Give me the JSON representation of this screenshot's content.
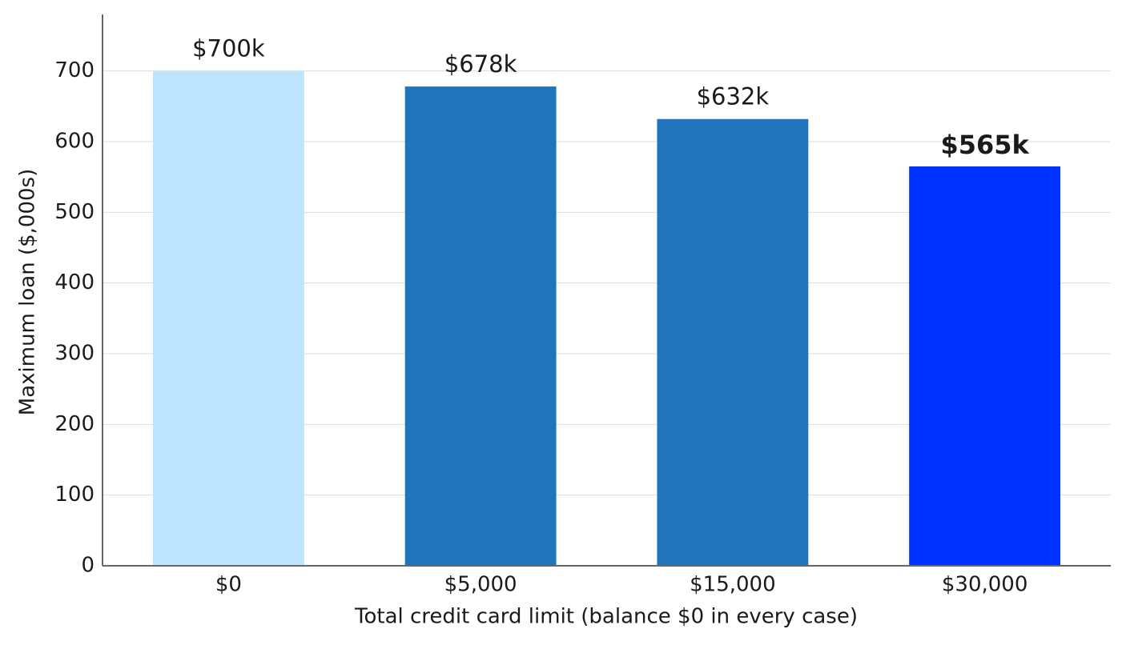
{
  "chart_data": {
    "type": "bar",
    "categories": [
      "$0",
      "$5,000",
      "$15,000",
      "$30,000"
    ],
    "values": [
      700,
      678,
      632,
      565
    ],
    "value_labels": [
      "$700k",
      "$678k",
      "$632k",
      "$565k"
    ],
    "colors": [
      "#bee3fc",
      "#1f74bc",
      "#1f74bc",
      "#0033ff"
    ],
    "highlight_index": 3,
    "xlabel": "Total credit card limit (balance $0 in every case)",
    "ylabel": "Maximum loan ($,000s)",
    "ylim": [
      0,
      780
    ],
    "yticks": [
      0,
      100,
      200,
      300,
      400,
      500,
      600,
      700
    ],
    "grid": true
  }
}
